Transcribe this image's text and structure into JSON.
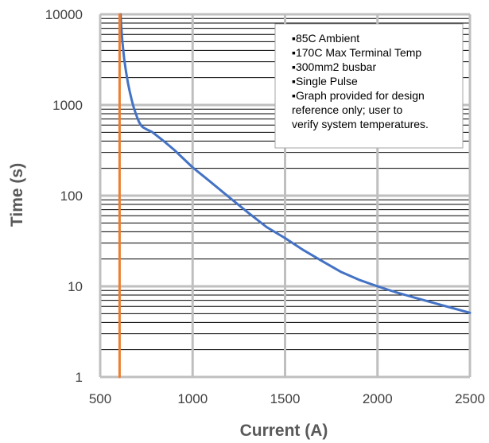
{
  "chart_data": {
    "type": "line",
    "title": "",
    "xlabel": "Current (A)",
    "ylabel": "Time (s)",
    "xlim": [
      500,
      2500
    ],
    "ylim": [
      1,
      10000
    ],
    "yscale": "log",
    "x_ticks": [
      500,
      1000,
      1500,
      2000,
      2500
    ],
    "y_ticks": [
      1,
      10,
      100,
      1000,
      10000
    ],
    "x_tick_labels": [
      "500",
      "1000",
      "1500",
      "2000",
      "2500"
    ],
    "y_tick_labels": [
      "1",
      "10",
      "100",
      "1000",
      "10000"
    ],
    "grid": true,
    "legend": "none",
    "series": [
      {
        "color": "#4472C4",
        "x": [
          610,
          615,
          620,
          630,
          640,
          650,
          660,
          670,
          680,
          690,
          700,
          710,
          720,
          730,
          750,
          780,
          800,
          850,
          900,
          1000,
          1100,
          1200,
          1300,
          1400,
          1500,
          1600,
          1700,
          1800,
          1900,
          2000,
          2100,
          2200,
          2300,
          2400,
          2500
        ],
        "y": [
          10000,
          7000,
          5000,
          3200,
          2300,
          1750,
          1400,
          1150,
          960,
          830,
          730,
          650,
          600,
          570,
          540,
          505,
          470,
          390,
          320,
          205,
          140,
          95,
          65,
          45,
          34,
          25,
          19,
          14.5,
          11.8,
          10,
          8.6,
          7.5,
          6.6,
          5.8,
          5.1
        ]
      },
      {
        "color": "#ED7D31",
        "x": [
          605,
          605
        ],
        "y": [
          1,
          10000
        ]
      }
    ],
    "annotation": {
      "lines": [
        "▪85C Ambient",
        "▪170C Max Terminal Temp",
        "▪300mm2 busbar",
        "▪Single Pulse",
        "▪Graph provided for design",
        "reference only; user to",
        "verify system temperatures."
      ]
    }
  }
}
